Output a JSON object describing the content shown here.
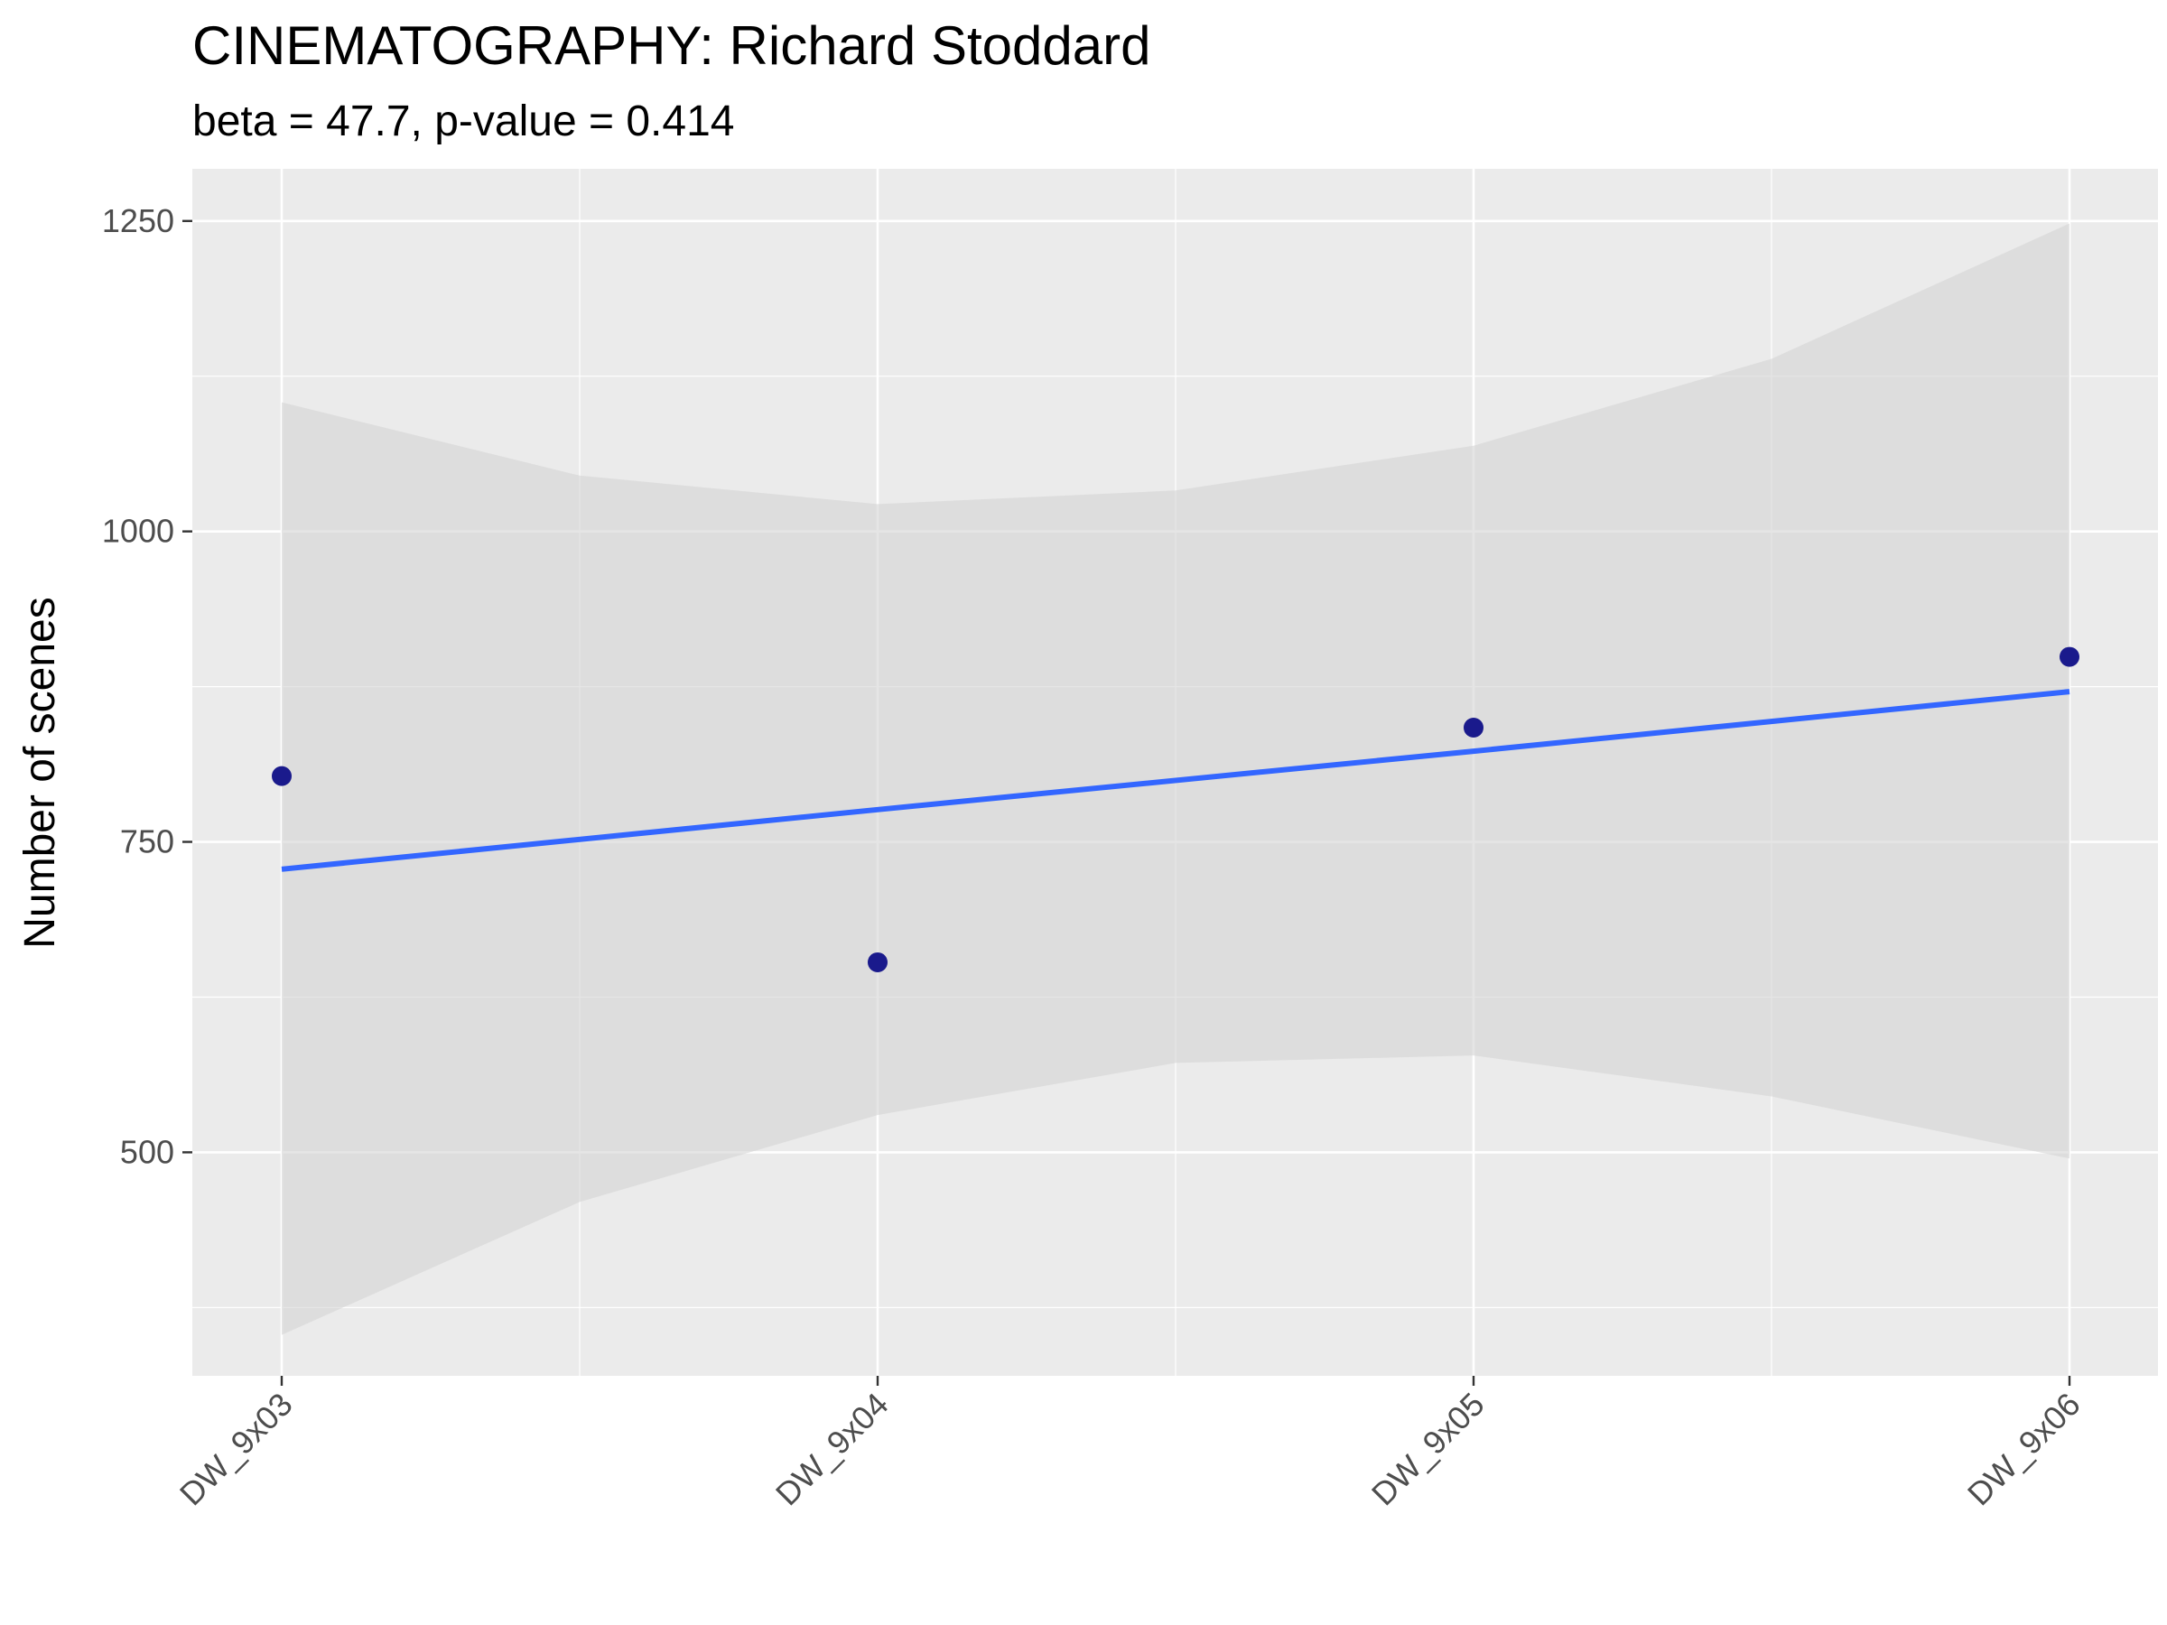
{
  "chart_data": {
    "type": "scatter",
    "title": "CINEMATOGRAPHY: Richard Stoddard",
    "subtitle": "beta = 47.7, p-value = 0.414",
    "xlabel": "",
    "ylabel": "Number of scenes",
    "categories": [
      "DW_9x03",
      "DW_9x04",
      "DW_9x05",
      "DW_9x06"
    ],
    "values": [
      803,
      653,
      842,
      899
    ],
    "ylim": [
      320,
      1292
    ],
    "yticks": [
      500,
      750,
      1000,
      1250
    ],
    "grid": true,
    "trend_line": {
      "values": [
        728,
        776,
        823,
        871
      ],
      "color": "#3366ff"
    },
    "confidence_band": {
      "x": [
        0,
        0.5,
        1,
        1.5,
        2,
        2.5,
        3
      ],
      "upper": [
        1104,
        1045,
        1022,
        1033,
        1069,
        1139,
        1248
      ],
      "lower": [
        353,
        460,
        530,
        572,
        578,
        545,
        495
      ]
    },
    "colors": {
      "points": "#1a1a8c",
      "line": "#3366ff",
      "band": "#d4d4d4",
      "panel": "#ebebeb",
      "grid": "#ffffff"
    }
  }
}
